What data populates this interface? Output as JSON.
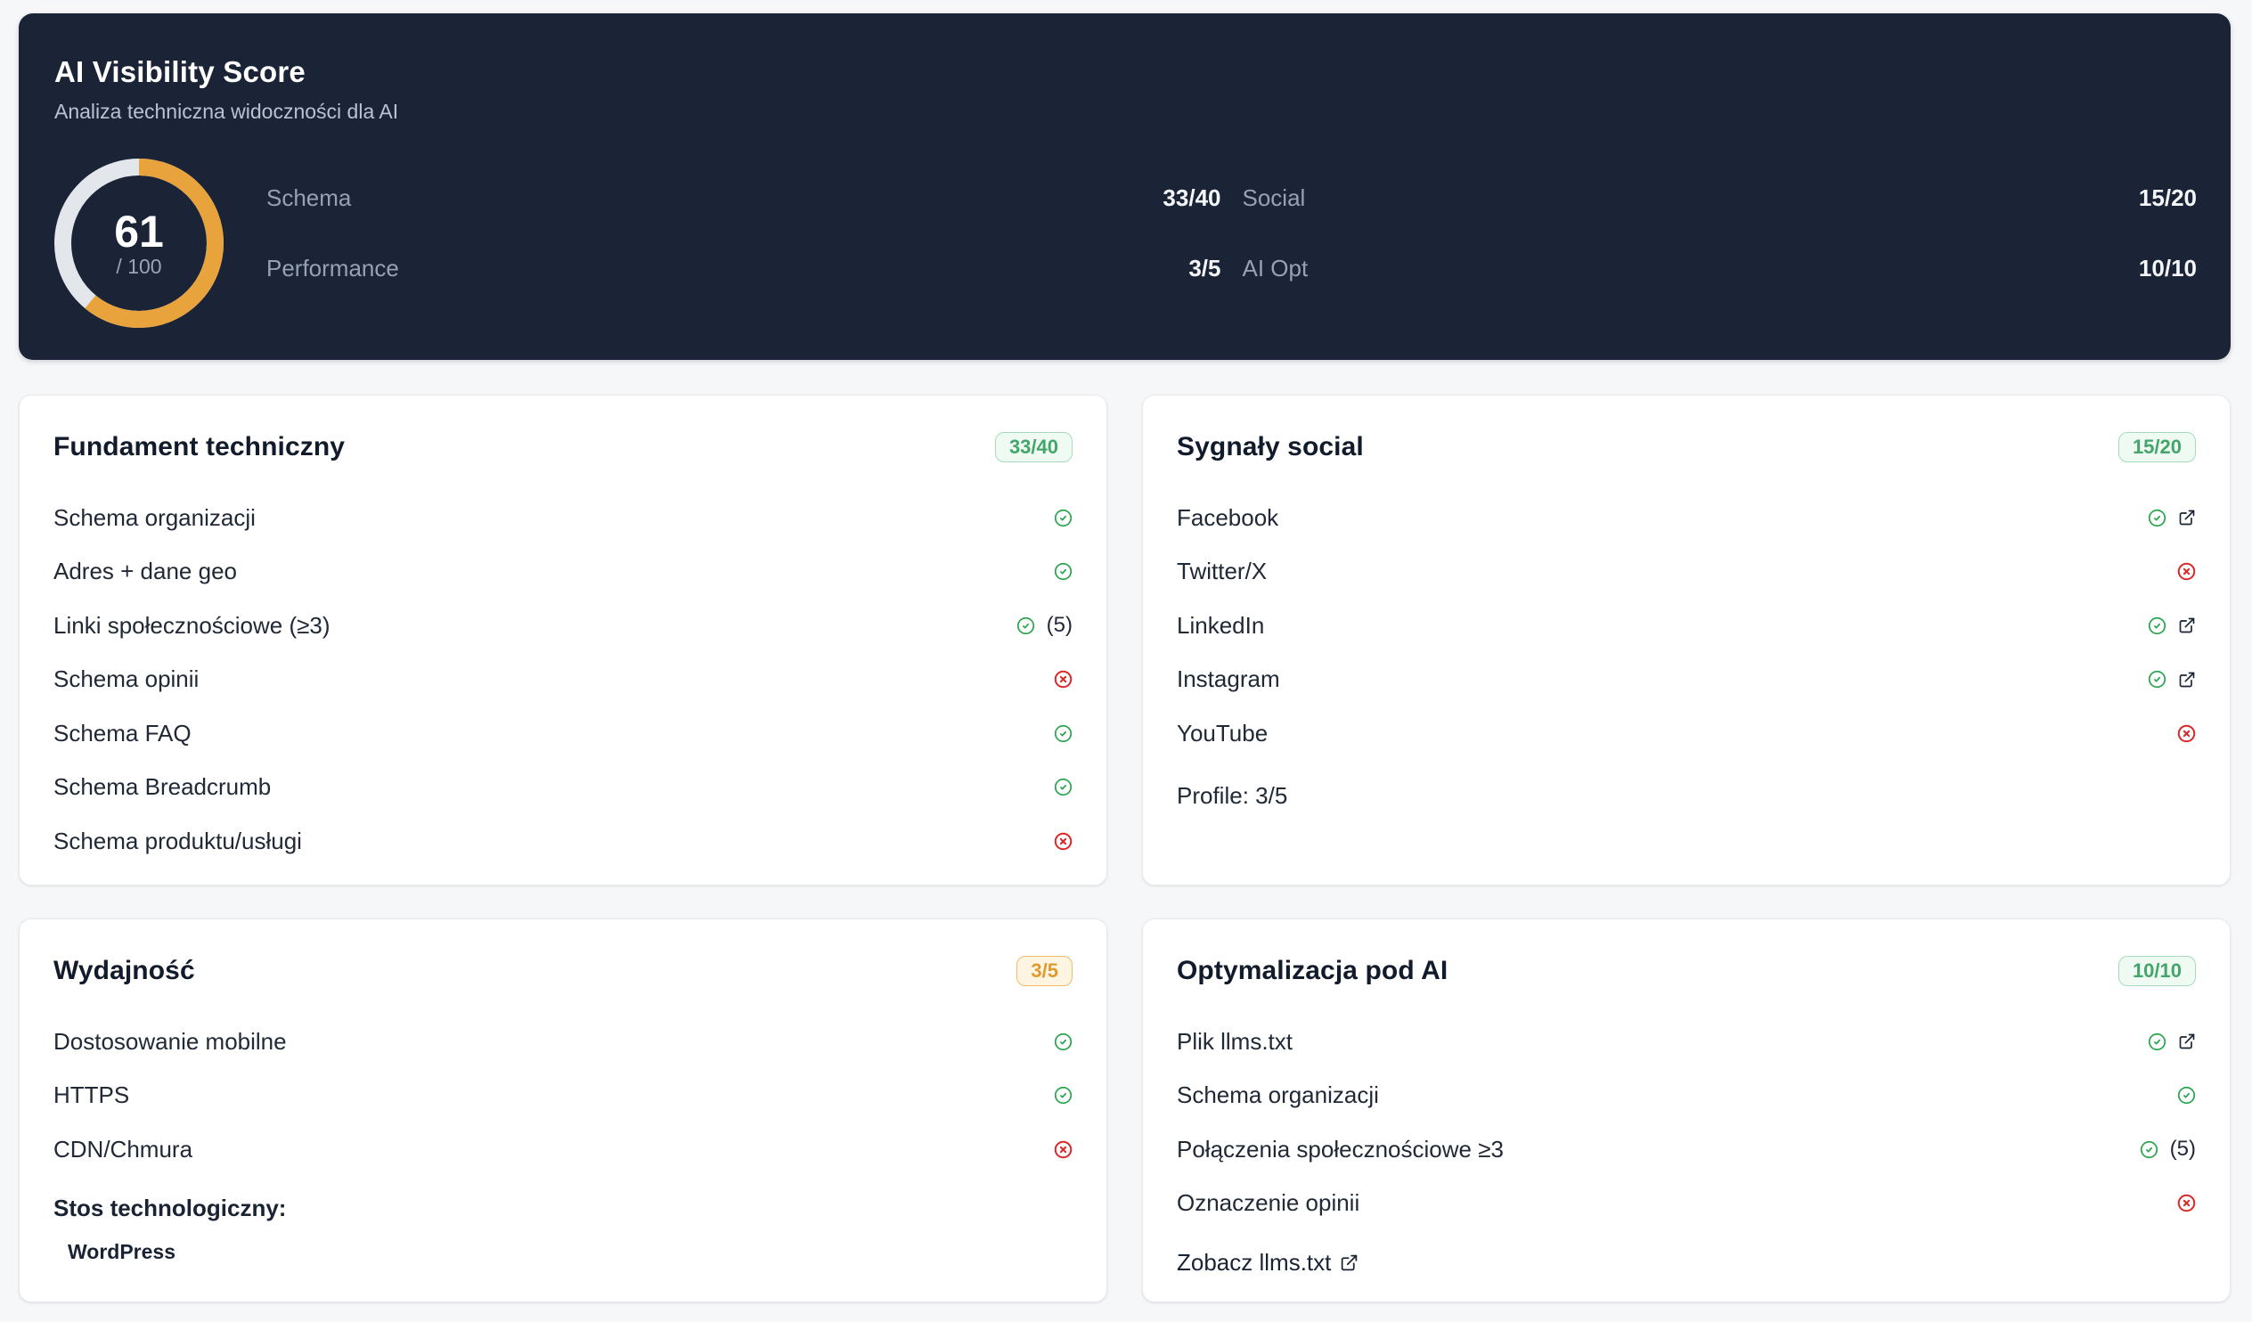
{
  "header": {
    "title": "AI Visibility Score",
    "subtitle": "Analiza techniczna widoczności dla AI",
    "score": "61",
    "score_max": "/ 100",
    "score_percent": 61,
    "metrics": [
      {
        "label": "Schema",
        "value": "33/40"
      },
      {
        "label": "Social",
        "value": "15/20"
      },
      {
        "label": "Performance",
        "value": "3/5"
      },
      {
        "label": "AI Opt",
        "value": "10/10"
      }
    ]
  },
  "chart_data": {
    "type": "pie",
    "title": "AI Visibility Score gauge",
    "values": [
      61,
      39
    ],
    "categories": [
      "score",
      "remaining"
    ],
    "annotations": [
      "61",
      "/ 100"
    ]
  },
  "cards": [
    {
      "id": "fundament-techniczny",
      "title": "Fundament techniczny",
      "badge": {
        "text": "33/40",
        "tone": "green"
      },
      "items": [
        {
          "label": "Schema organizacji",
          "status": "pass"
        },
        {
          "label": "Adres + dane geo",
          "status": "pass"
        },
        {
          "label": "Linki społecznościowe (≥3)",
          "status": "pass",
          "count": "(5)"
        },
        {
          "label": "Schema opinii",
          "status": "fail"
        },
        {
          "label": "Schema FAQ",
          "status": "pass"
        },
        {
          "label": "Schema Breadcrumb",
          "status": "pass"
        },
        {
          "label": "Schema produktu/usługi",
          "status": "fail"
        }
      ]
    },
    {
      "id": "sygnaly-social",
      "title": "Sygnały social",
      "badge": {
        "text": "15/20",
        "tone": "green"
      },
      "items": [
        {
          "label": "Facebook",
          "status": "pass",
          "external_link": true
        },
        {
          "label": "Twitter/X",
          "status": "fail"
        },
        {
          "label": "LinkedIn",
          "status": "pass",
          "external_link": true
        },
        {
          "label": "Instagram",
          "status": "pass",
          "external_link": true
        },
        {
          "label": "YouTube",
          "status": "fail"
        }
      ],
      "footer_text": "Profile: 3/5"
    },
    {
      "id": "wydajnosc",
      "title": "Wydajność",
      "badge": {
        "text": "3/5",
        "tone": "orange"
      },
      "items": [
        {
          "label": "Dostosowanie mobilne",
          "status": "pass"
        },
        {
          "label": "HTTPS",
          "status": "pass"
        },
        {
          "label": "CDN/Chmura",
          "status": "fail"
        }
      ],
      "tech_stack_label": "Stos technologiczny:",
      "tech_stack_value": "WordPress"
    },
    {
      "id": "optymalizacja-pod-ai",
      "title": "Optymalizacja pod AI",
      "badge": {
        "text": "10/10",
        "tone": "green"
      },
      "items": [
        {
          "label": "Plik llms.txt",
          "status": "pass",
          "external_link": true
        },
        {
          "label": "Schema organizacji",
          "status": "pass"
        },
        {
          "label": "Połączenia społecznościowe ≥3",
          "status": "pass",
          "count": "(5)"
        },
        {
          "label": "Oznaczenie opinii",
          "status": "fail"
        }
      ],
      "link_text": "Zobacz llms.txt"
    }
  ],
  "colors": {
    "header_bg": "#1b2437",
    "gauge_progress": "#e8a33d",
    "gauge_track": "#e3e6ea",
    "pass_green": "#2aa54e",
    "fail_red": "#dc2828",
    "link_icon_dark": "#1a2333",
    "badge_green_text": "#44a56b",
    "badge_orange_text": "#e09a2c"
  }
}
